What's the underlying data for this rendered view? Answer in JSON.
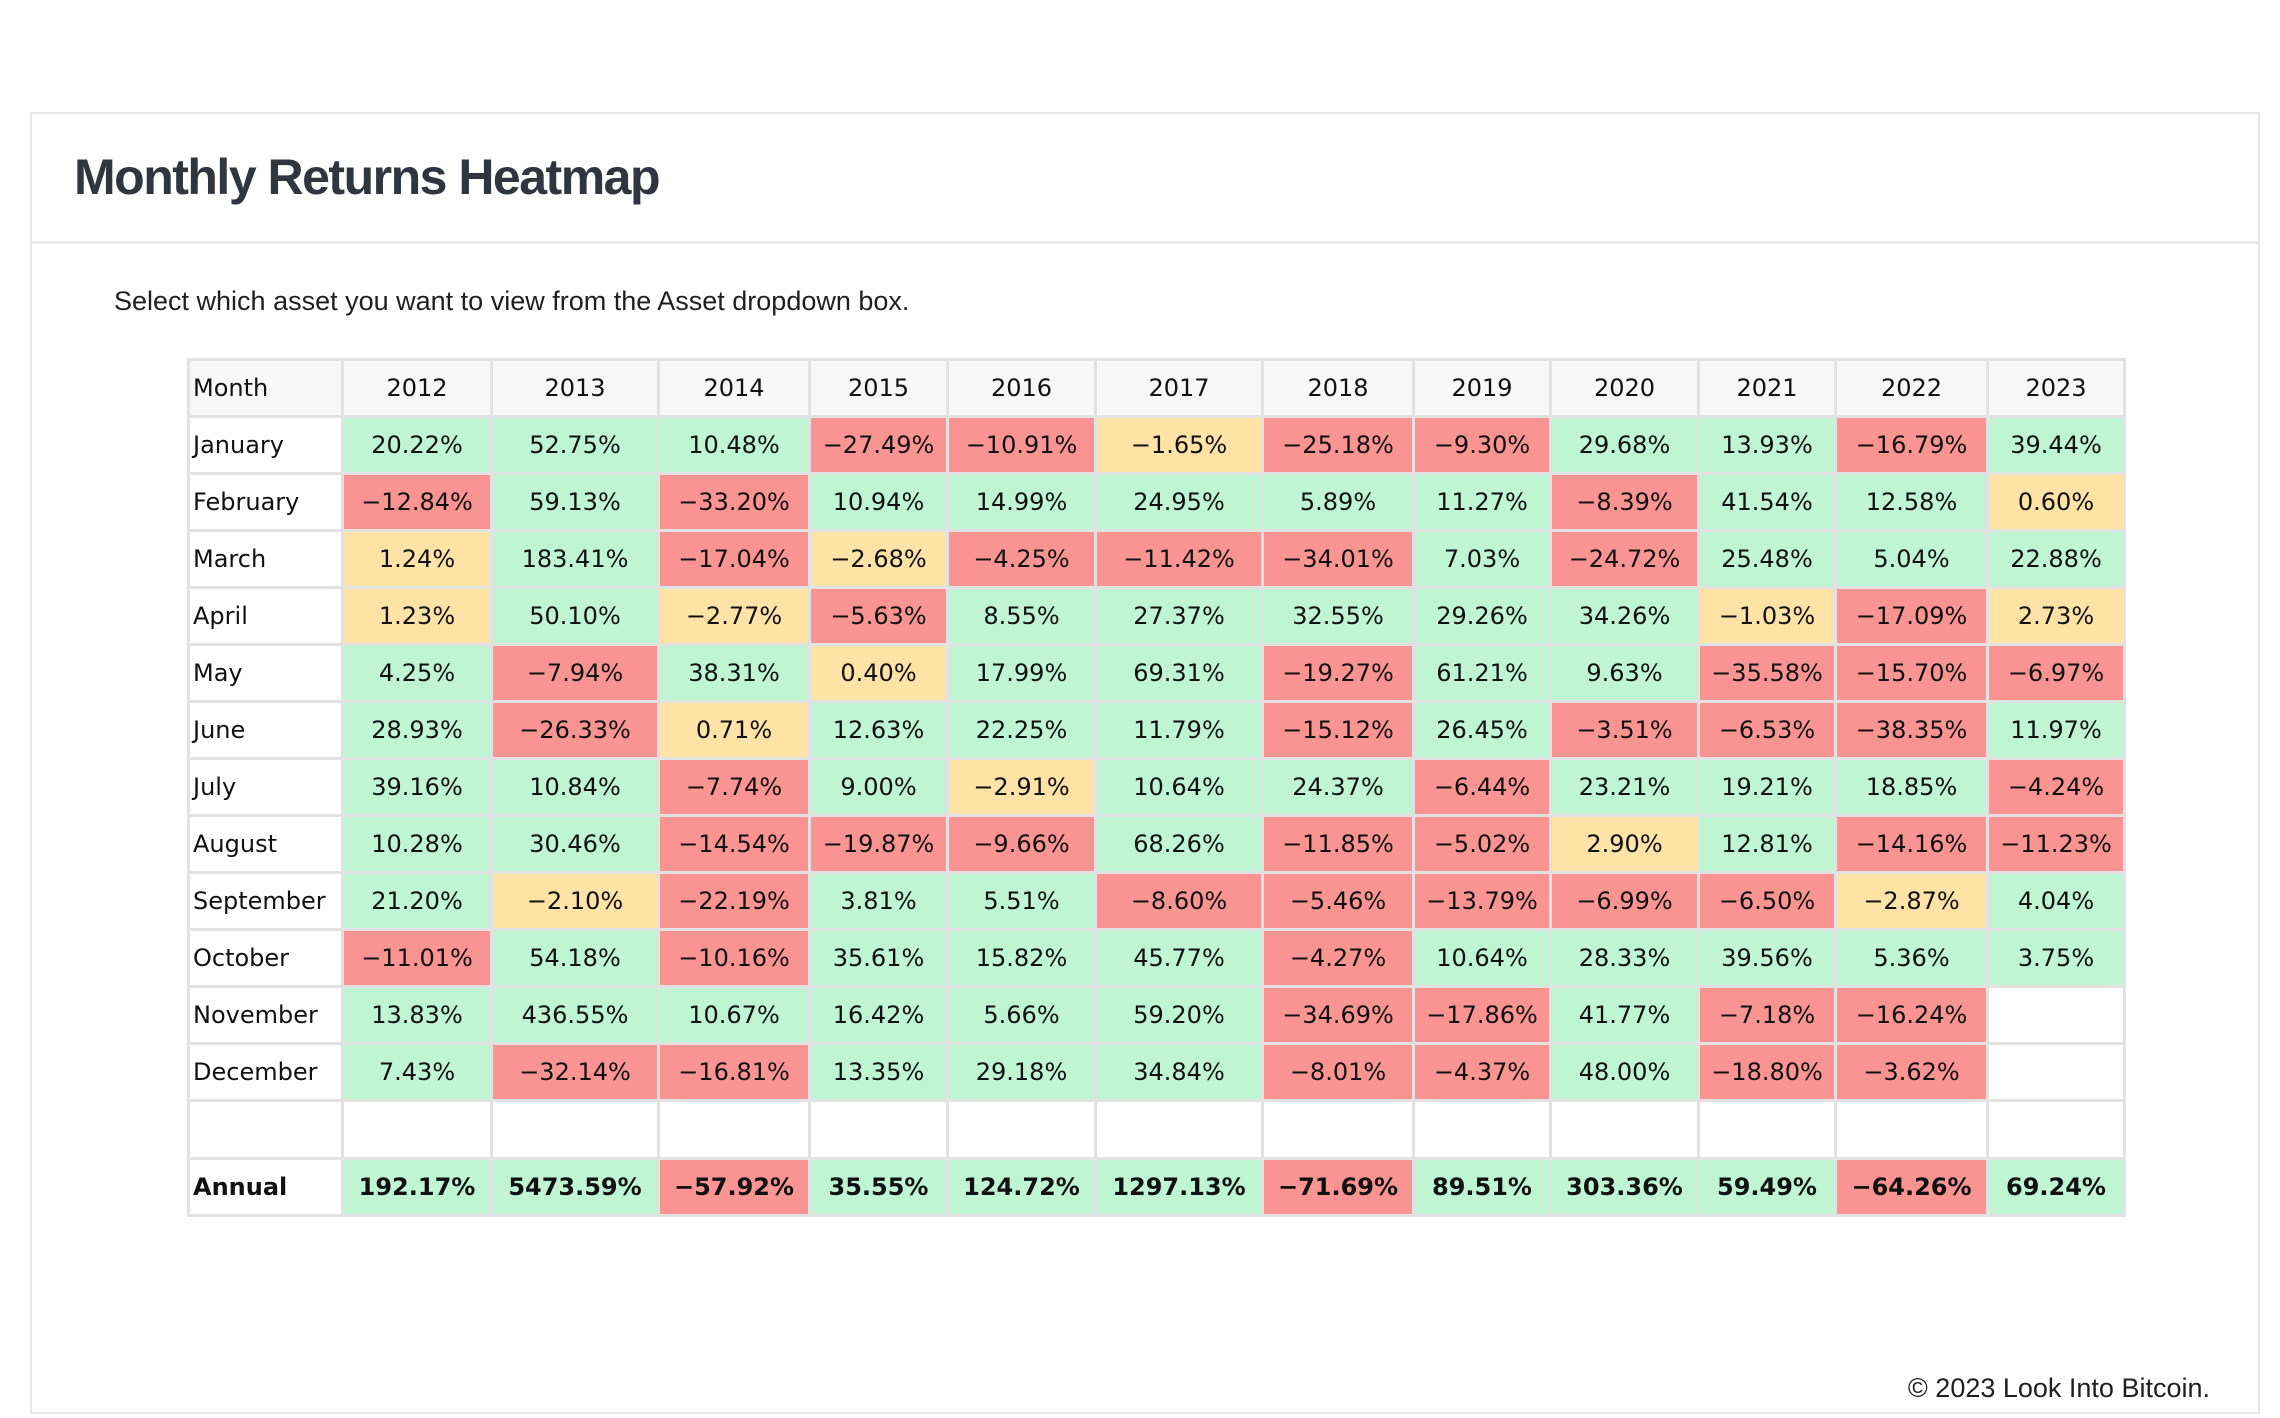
{
  "page": {
    "title": "Monthly Returns Heatmap",
    "subtitle": "Select which asset you want to view from the Asset dropdown box.",
    "footer": "© 2023 Look Into Bitcoin."
  },
  "colors": {
    "positive": "#bff5d3",
    "neutral": "#ffe2a6",
    "negative": "#f99493"
  },
  "chart_data": {
    "type": "heatmap",
    "row_header": "Month",
    "annual_label": "Annual",
    "years": [
      "2012",
      "2013",
      "2014",
      "2015",
      "2016",
      "2017",
      "2018",
      "2019",
      "2020",
      "2021",
      "2022",
      "2023"
    ],
    "months": [
      "January",
      "February",
      "March",
      "April",
      "May",
      "June",
      "July",
      "August",
      "September",
      "October",
      "November",
      "December"
    ],
    "values": [
      [
        20.22,
        52.75,
        10.48,
        -27.49,
        -10.91,
        -1.65,
        -25.18,
        -9.3,
        29.68,
        13.93,
        -16.79,
        39.44
      ],
      [
        -12.84,
        59.13,
        -33.2,
        10.94,
        14.99,
        24.95,
        5.89,
        11.27,
        -8.39,
        41.54,
        12.58,
        0.6
      ],
      [
        1.24,
        183.41,
        -17.04,
        -2.68,
        -4.25,
        -11.42,
        -34.01,
        7.03,
        -24.72,
        25.48,
        5.04,
        22.88
      ],
      [
        1.23,
        50.1,
        -2.77,
        -5.63,
        8.55,
        27.37,
        32.55,
        29.26,
        34.26,
        -1.03,
        -17.09,
        2.73
      ],
      [
        4.25,
        -7.94,
        38.31,
        0.4,
        17.99,
        69.31,
        -19.27,
        61.21,
        9.63,
        -35.58,
        -15.7,
        -6.97
      ],
      [
        28.93,
        -26.33,
        0.71,
        12.63,
        22.25,
        11.79,
        -15.12,
        26.45,
        -3.51,
        -6.53,
        -38.35,
        11.97
      ],
      [
        39.16,
        10.84,
        -7.74,
        9.0,
        -2.91,
        10.64,
        24.37,
        -6.44,
        23.21,
        19.21,
        18.85,
        -4.24
      ],
      [
        10.28,
        30.46,
        -14.54,
        -19.87,
        -9.66,
        68.26,
        -11.85,
        -5.02,
        2.9,
        12.81,
        -14.16,
        -11.23
      ],
      [
        21.2,
        -2.1,
        -22.19,
        3.81,
        5.51,
        -8.6,
        -5.46,
        -13.79,
        -6.99,
        -6.5,
        -2.87,
        4.04
      ],
      [
        -11.01,
        54.18,
        -10.16,
        35.61,
        15.82,
        45.77,
        -4.27,
        10.64,
        28.33,
        39.56,
        5.36,
        3.75
      ],
      [
        13.83,
        436.55,
        10.67,
        16.42,
        5.66,
        59.2,
        -34.69,
        -17.86,
        41.77,
        -7.18,
        -16.24,
        null
      ],
      [
        7.43,
        -32.14,
        -16.81,
        13.35,
        29.18,
        34.84,
        -8.01,
        -4.37,
        48.0,
        -18.8,
        -3.62,
        null
      ]
    ],
    "annual": [
      192.17,
      5473.59,
      -57.92,
      35.55,
      124.72,
      1297.13,
      -71.69,
      89.51,
      303.36,
      59.49,
      -64.26,
      69.24
    ]
  }
}
